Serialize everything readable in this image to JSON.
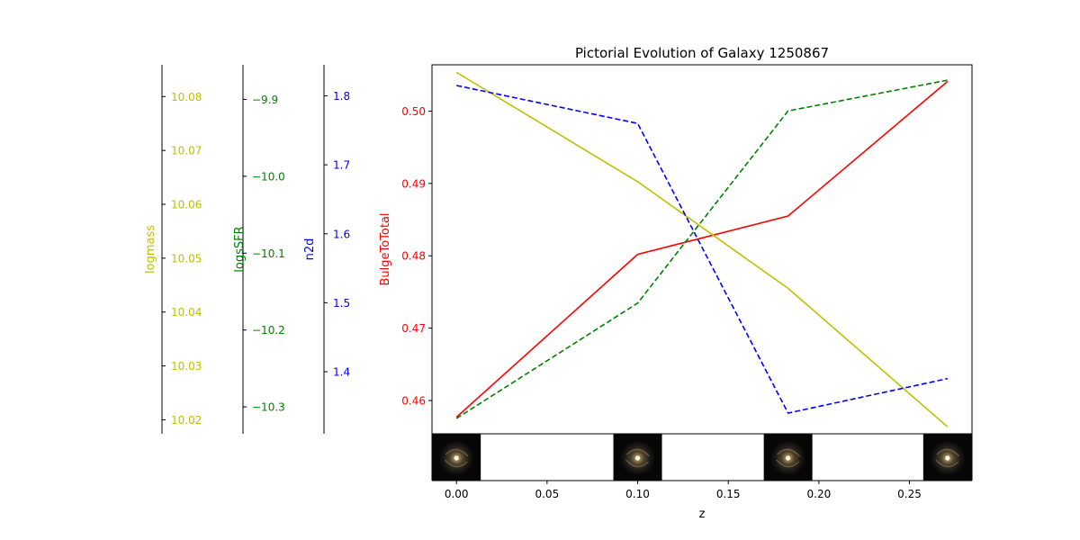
{
  "chart_data": {
    "type": "line",
    "title": "Pictorial Evolution of Galaxy 1250867",
    "xlabel": "z",
    "x": [
      0.0,
      0.1,
      0.183,
      0.271
    ],
    "xlim": [
      -0.0135,
      0.2845
    ],
    "xticks": [
      "0.00",
      "0.05",
      "0.10",
      "0.15",
      "0.20",
      "0.25"
    ],
    "series": [
      {
        "name": "BulgeToTotal",
        "axis_label": "BulgeToTotal",
        "color": "#ff0000",
        "dash": "solid",
        "values": [
          0.4577,
          0.4802,
          0.4855,
          0.5041
        ],
        "ylim": [
          0.4554,
          0.5064
        ],
        "ticks": [
          "0.46",
          "0.47",
          "0.48",
          "0.49",
          "0.50"
        ]
      },
      {
        "name": "logmass",
        "axis_label": "logmass",
        "color": "#bfbf00",
        "dash": "solid",
        "values": [
          10.0845,
          10.0642,
          10.0444,
          10.0187
        ],
        "ylim": [
          10.0174,
          10.0859
        ],
        "ticks": [
          "10.02",
          "10.03",
          "10.04",
          "10.05",
          "10.06",
          "10.07",
          "10.08"
        ]
      },
      {
        "name": "logsSFR",
        "axis_label": "logsSFR",
        "color": "#008000",
        "dash": "dashed",
        "values": [
          -10.315,
          -10.165,
          -9.915,
          -9.875
        ],
        "ylim": [
          -10.335,
          -9.855
        ],
        "ticks": [
          "−10.3",
          "−10.2",
          "−10.1",
          "−10.0",
          "−9.9"
        ]
      },
      {
        "name": "n2d",
        "axis_label": "n2d",
        "color": "#0000ff",
        "dash": "dashed",
        "values": [
          1.815,
          1.76,
          1.34,
          1.39
        ],
        "ylim": [
          1.31,
          1.845
        ],
        "ticks": [
          "1.4",
          "1.5",
          "1.6",
          "1.7",
          "1.8"
        ]
      }
    ],
    "thumbnails": [
      {
        "z": 0.0
      },
      {
        "z": 0.1
      },
      {
        "z": 0.183
      },
      {
        "z": 0.271
      }
    ],
    "grid": false,
    "legend": "none"
  }
}
